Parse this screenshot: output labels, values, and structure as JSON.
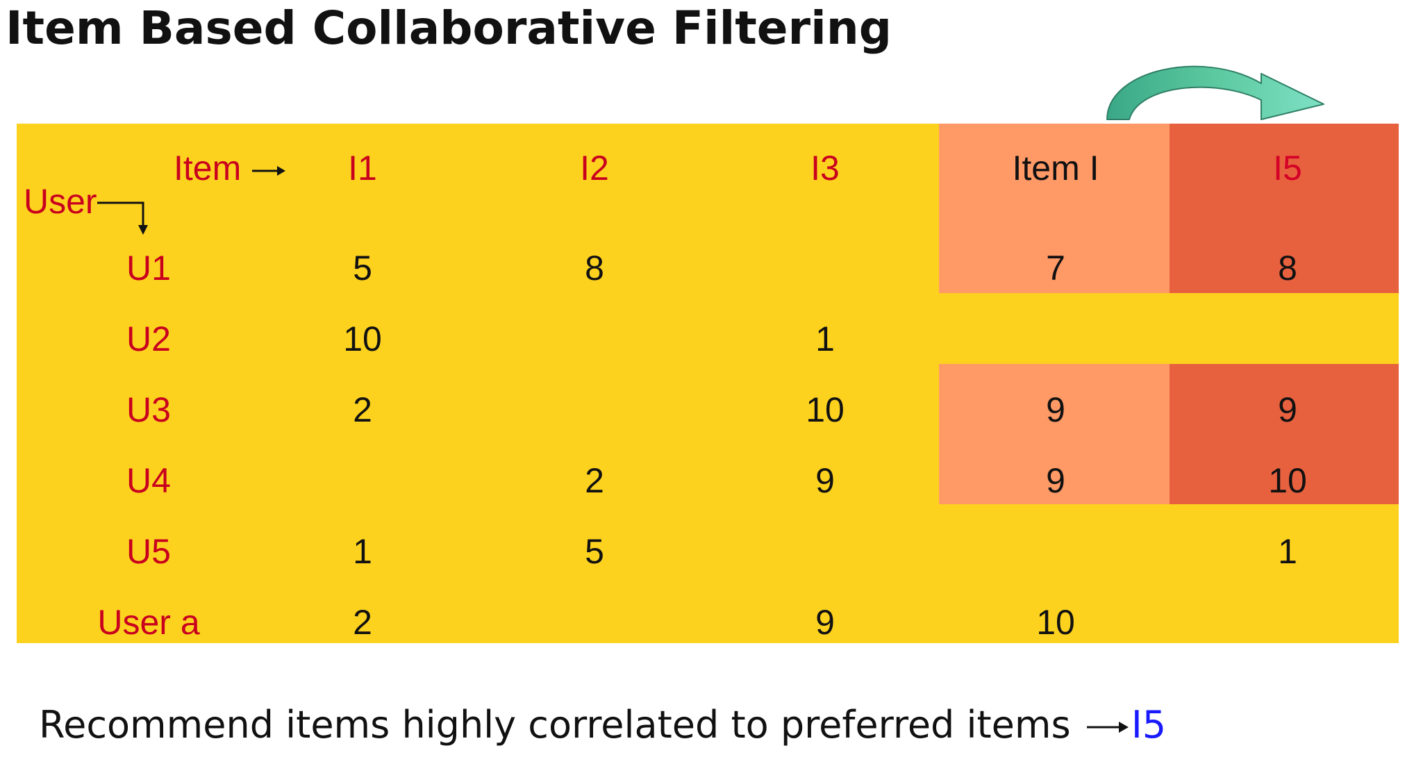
{
  "title": "Item Based Collaborative Filtering",
  "matrix": {
    "item_axis_label": "Item",
    "user_axis_label": "User",
    "columns": [
      "I1",
      "I2",
      "I3",
      "Item I",
      "I5"
    ],
    "rows": [
      {
        "user": "U1",
        "values": [
          "5",
          "8",
          "",
          "7",
          "8"
        ]
      },
      {
        "user": "U2",
        "values": [
          "10",
          "",
          "1",
          "",
          ""
        ]
      },
      {
        "user": "U3",
        "values": [
          "2",
          "",
          "10",
          "9",
          "9"
        ]
      },
      {
        "user": "U4",
        "values": [
          "",
          "2",
          "9",
          "9",
          "10"
        ]
      },
      {
        "user": "U5",
        "values": [
          "1",
          "5",
          "",
          "",
          "1"
        ]
      },
      {
        "user": "User a",
        "values": [
          "2",
          "",
          "9",
          "10",
          ""
        ]
      }
    ]
  },
  "footer": {
    "text": "Recommend items highly correlated to preferred items",
    "target": "I5"
  },
  "colors": {
    "background": "#fdd21f",
    "highlight_item": "#ff9966",
    "highlight_i5": "#e8613f",
    "label_red": "#c8001e",
    "target_blue": "#1a1aff",
    "curved_arrow": "#5cc9a0"
  }
}
